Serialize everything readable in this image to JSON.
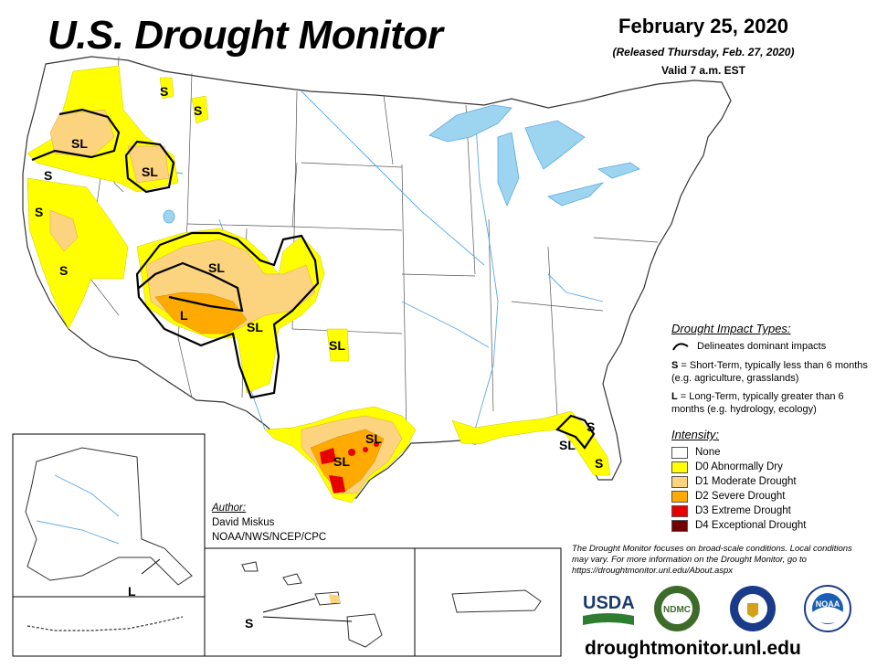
{
  "header": {
    "title": "U.S. Drought Monitor",
    "date": "February 25, 2020",
    "released": "(Released Thursday, Feb. 27, 2020)",
    "valid": "Valid 7 a.m. EST"
  },
  "impact_legend": {
    "title": "Drought Impact Types:",
    "line_label": "Delineates dominant impacts",
    "s_key": "S",
    "s_text": " = Short-Term, typically less than 6 months (e.g. agriculture, grasslands)",
    "l_key": "L",
    "l_text": " = Long-Term, typically greater than 6 months (e.g. hydrology, ecology)"
  },
  "intensity_legend": {
    "title": "Intensity:",
    "items": [
      {
        "label": "None",
        "color": "#ffffff"
      },
      {
        "label": "D0 Abnormally Dry",
        "color": "#ffff00"
      },
      {
        "label": "D1 Moderate Drought",
        "color": "#fcd37f"
      },
      {
        "label": "D2 Severe Drought",
        "color": "#ffaa00"
      },
      {
        "label": "D3 Extreme Drought",
        "color": "#e60000"
      },
      {
        "label": "D4 Exceptional Drought",
        "color": "#730000"
      }
    ]
  },
  "author": {
    "title": "Author:",
    "name": "David Miskus",
    "org": "NOAA/NWS/NCEP/CPC"
  },
  "note": "The Drought Monitor focuses on broad-scale conditions. Local conditions may vary. For more information on the Drought Monitor, go to https://droughtmonitor.unl.edu/About.aspx",
  "url": "droughtmonitor.unl.edu",
  "map_labels": {
    "sl_oregon": "SL",
    "sl_idaho": "SL",
    "s_nw_coast": "S",
    "s_ca_north": "S",
    "s_ca_central": "S",
    "s_montana_1": "S",
    "s_montana_2": "S",
    "sl_colorado": "SL",
    "l_southwest": "L",
    "sl_new_mexico": "SL",
    "sl_oklahoma": "SL",
    "sl_texas_1": "SL",
    "sl_texas_2": "SL",
    "s_florida_1": "S",
    "sl_florida": "SL",
    "s_florida_2": "S",
    "l_alaska": "L",
    "s_hawaii": "S"
  },
  "logos": {
    "usda": "USDA",
    "ndmc": "NDMC",
    "noaa": "NOAA"
  },
  "colors": {
    "d0": "#ffff00",
    "d1": "#fcd37f",
    "d2": "#ffaa00",
    "d3": "#e60000",
    "d4": "#730000",
    "water": "#9dd5f0",
    "river": "#5aa9e6"
  }
}
